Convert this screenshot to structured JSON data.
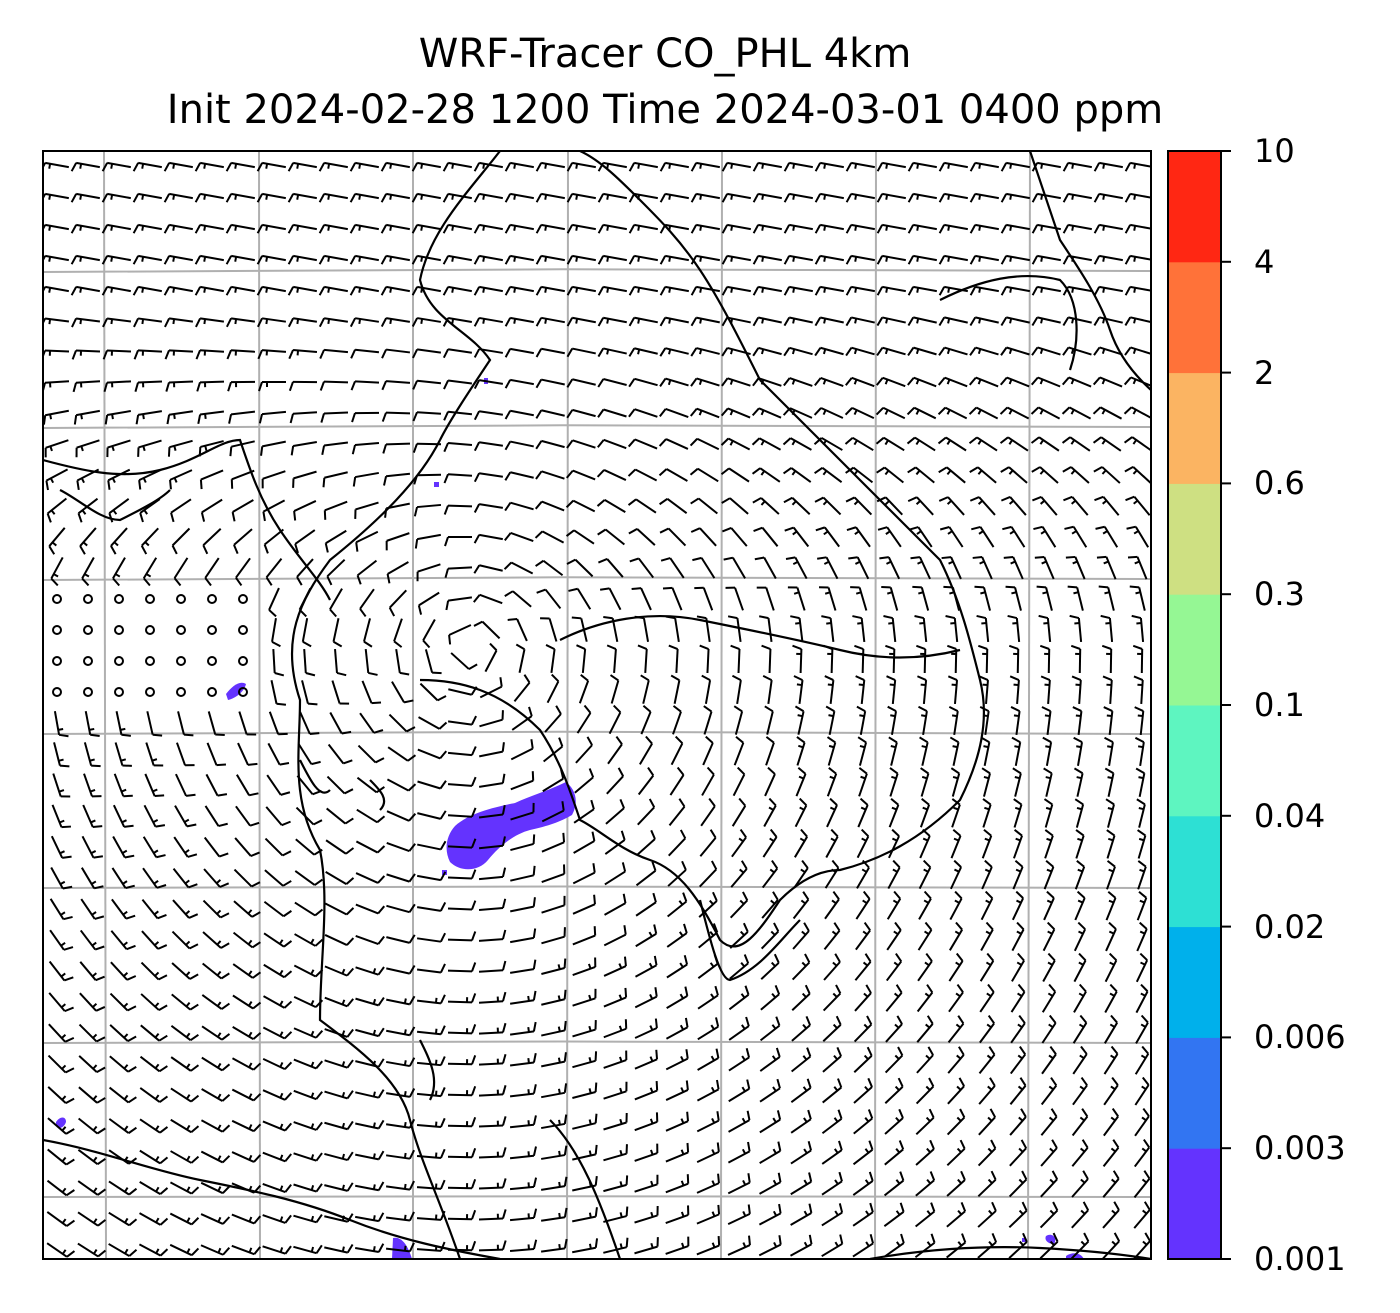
{
  "title": {
    "line1": "WRF-Tracer CO_PHL 4km",
    "line2": "Init 2024-02-28 1200 Time 2024-03-01 0400 ppm"
  },
  "colorbar": {
    "ticks": [
      "0.001",
      "0.003",
      "0.006",
      "0.02",
      "0.04",
      "0.1",
      "0.3",
      "0.6",
      "2",
      "4",
      "10"
    ],
    "colors": [
      "#6433fe",
      "#3275f2",
      "#00b0eb",
      "#2de0d4",
      "#5ef5c0",
      "#95f794",
      "#cee082",
      "#fbb462",
      "#ff7239",
      "#ff2713"
    ]
  },
  "map": {
    "tracer_color": "#6433fe",
    "barb_color": "#000000",
    "grid_color": "#b0b0b0"
  }
}
